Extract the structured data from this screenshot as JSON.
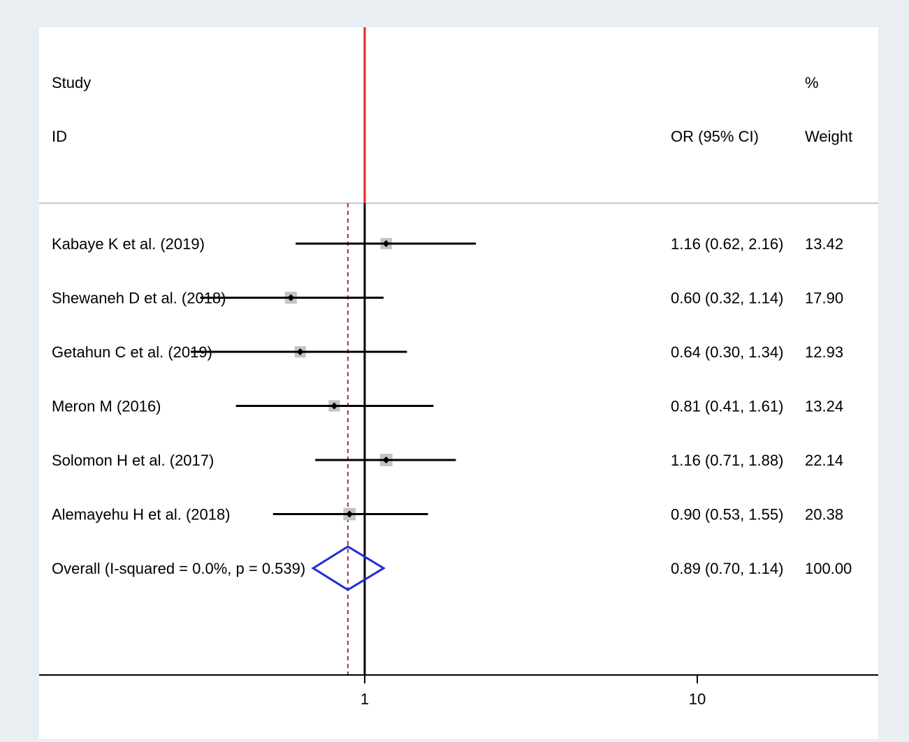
{
  "headers": {
    "study_line1": "Study",
    "study_line2": "ID",
    "or_label": "OR (95% CI)",
    "weight_line1": "%",
    "weight_line2": "Weight"
  },
  "chart_data": {
    "type": "forest",
    "x_scale": "log",
    "xlim": [
      0.105,
      35
    ],
    "x_ticks": [
      1,
      10
    ],
    "x_tick_labels": [
      "1",
      "10"
    ],
    "null_line": 1,
    "null_line_color": "#e8231f",
    "pooled_line_color": "#a0343a",
    "diamond_color": "#1f2bd6",
    "studies": [
      {
        "label": "Kabaye K et al. (2019)",
        "or": 1.16,
        "lo": 0.62,
        "hi": 2.16,
        "or_text": "1.16 (0.62, 2.16)",
        "weight": 13.42,
        "weight_text": "13.42"
      },
      {
        "label": "Shewaneh D et al. (2018)",
        "or": 0.6,
        "lo": 0.32,
        "hi": 1.14,
        "or_text": "0.60 (0.32, 1.14)",
        "weight": 17.9,
        "weight_text": "17.90"
      },
      {
        "label": "Getahun C et al. (2019)",
        "or": 0.64,
        "lo": 0.3,
        "hi": 1.34,
        "or_text": "0.64 (0.30, 1.34)",
        "weight": 12.93,
        "weight_text": "12.93"
      },
      {
        "label": "Meron M (2016)",
        "or": 0.81,
        "lo": 0.41,
        "hi": 1.61,
        "or_text": "0.81 (0.41, 1.61)",
        "weight": 13.24,
        "weight_text": "13.24"
      },
      {
        "label": "Solomon H et al. (2017)",
        "or": 1.16,
        "lo": 0.71,
        "hi": 1.88,
        "or_text": "1.16 (0.71, 1.88)",
        "weight": 22.14,
        "weight_text": "22.14"
      },
      {
        "label": "Alemayehu H et al. (2018)",
        "or": 0.9,
        "lo": 0.53,
        "hi": 1.55,
        "or_text": "0.90 (0.53, 1.55)",
        "weight": 20.38,
        "weight_text": "20.38"
      }
    ],
    "overall": {
      "label": "Overall  (I-squared = 0.0%, p = 0.539)",
      "or": 0.89,
      "lo": 0.7,
      "hi": 1.14,
      "or_text": "0.89 (0.70, 1.14)",
      "weight_text": "100.00"
    }
  }
}
